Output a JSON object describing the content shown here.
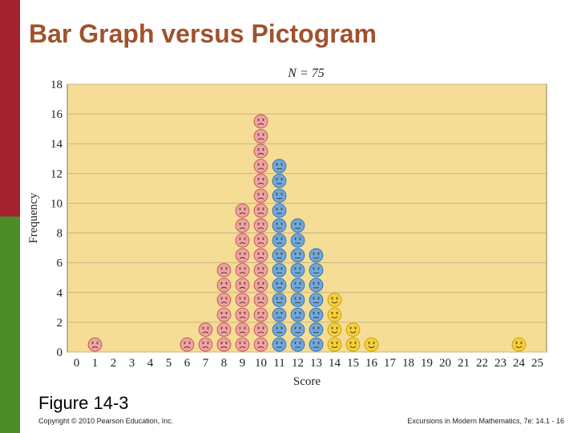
{
  "slide": {
    "title": "Bar Graph versus Pictogram",
    "caption": "Figure 14-3",
    "footer_left": "Copyright © 2010 Pearson Education, Inc.",
    "footer_right": "Excursions in Modern Mathematics, 7e: 14.1 - 16"
  },
  "colors": {
    "side_top": "#a3222f",
    "side_bottom": "#4e8c2a",
    "title": "#a0522d",
    "plot_background": "#f5dd96",
    "gridline": "#c9b383",
    "face_red": "#f0a3a3",
    "face_blue": "#6fa8dc",
    "face_yellow": "#f5d23c"
  },
  "chart_data": {
    "type": "pictogram",
    "title": "N = 75",
    "xlabel": "Score",
    "ylabel": "Frequency",
    "x": [
      1,
      6,
      7,
      8,
      9,
      10,
      11,
      12,
      13,
      14,
      15,
      16,
      24
    ],
    "values": [
      1,
      1,
      2,
      6,
      10,
      16,
      13,
      9,
      7,
      4,
      2,
      1,
      1
    ],
    "face_colors": [
      "red",
      "red",
      "red",
      "red",
      "red",
      "red",
      "blue",
      "blue",
      "blue",
      "yellow",
      "yellow",
      "yellow",
      "yellow"
    ],
    "face_moods": [
      "sad",
      "sad",
      "sad",
      "sad",
      "sad",
      "sad",
      "neutral",
      "neutral",
      "neutral",
      "happy",
      "happy",
      "happy",
      "happy"
    ],
    "xticks": [
      "0",
      "1",
      "2",
      "3",
      "4",
      "5",
      "6",
      "7",
      "8",
      "9",
      "10",
      "11",
      "12",
      "13",
      "14",
      "15",
      "16",
      "17",
      "18",
      "19",
      "20",
      "21",
      "22",
      "23",
      "24",
      "25"
    ],
    "yticks": [
      "0",
      "2",
      "4",
      "6",
      "8",
      "10",
      "12",
      "14",
      "16",
      "18"
    ],
    "xlim": [
      -0.5,
      25.5
    ],
    "ylim": [
      0,
      18
    ],
    "grid": true
  }
}
